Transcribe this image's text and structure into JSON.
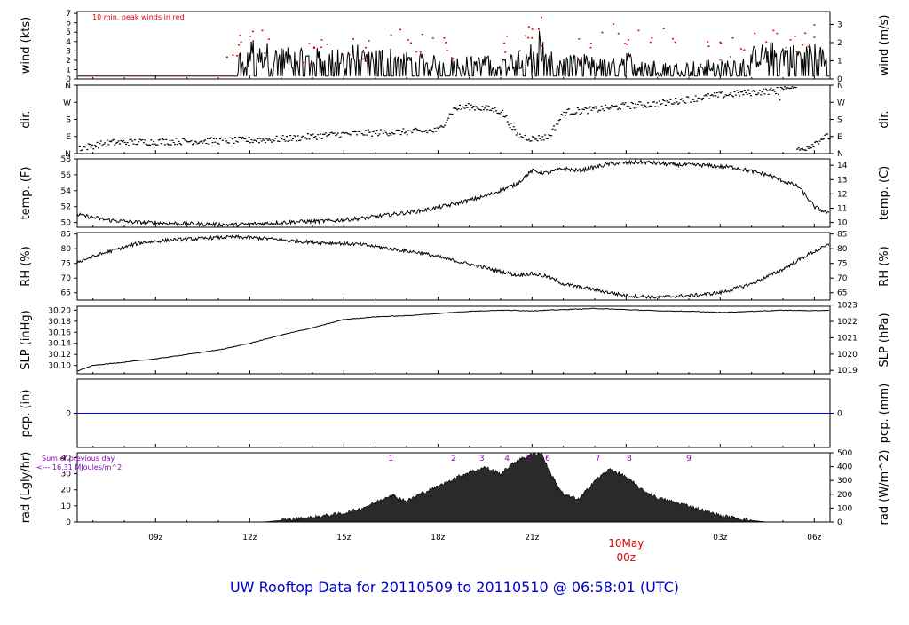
{
  "title": "UW Rooftop Data for 20110509  to  20110510 @ 06:58:01  (UTC)",
  "colors": {
    "title": "#0000cc",
    "peak": "#dd0000",
    "date_label": "#dd0000",
    "pcp_line": "#0000ff",
    "rad_note": "#8800bb",
    "rad_fill": "#2a2a2a",
    "axis": "#000000"
  },
  "time_axis": {
    "tick_labels": [
      "09z",
      "12z",
      "15z",
      "18z",
      "21z",
      "00z",
      "03z",
      "06z"
    ],
    "date_label": "10May",
    "date_sub": "00z"
  },
  "chart_data": [
    {
      "type": "line",
      "panel": "wind",
      "ylabel_left": "wind (kts)",
      "ylabel_right": "wind (m/s)",
      "annotation": "10 min. peak winds in red",
      "yticks_left": [
        "0",
        "1",
        "2",
        "3",
        "4",
        "5",
        "6",
        "7"
      ],
      "yticks_right": [
        "0",
        "1",
        "2",
        "3"
      ],
      "ylim": [
        0,
        7.2
      ],
      "x_hours_range": [
        6.5,
        30.5
      ],
      "series": [
        {
          "values_from": "wind speed at 1-min resolution (kts)",
          "x_hours": [
            6.5,
            11.6,
            11.7,
            11.75,
            12.0,
            12.1,
            12.2,
            12.4,
            12.5,
            12.7,
            13.9,
            14.3,
            14.8,
            15.3,
            15.8,
            16.3,
            16.8,
            17.3,
            18.1,
            20.2,
            20.5,
            21.0,
            21.2,
            21.5,
            22.3,
            22.6,
            23.5,
            24.0,
            24.2,
            24.6,
            25.3,
            25.8,
            26.5,
            26.9,
            27.5,
            28.0,
            28.3,
            28.8,
            29.4,
            29.8,
            30.1,
            30.5
          ],
          "values": [
            0.3,
            0.3,
            4.0,
            2.0,
            3.5,
            4.8,
            4.5,
            3.0,
            4.2,
            3.5,
            3.2,
            3.5,
            3.2,
            3.8,
            3.5,
            3.6,
            3.2,
            2.8,
            2.5,
            2.5,
            3.5,
            4.0,
            6.3,
            3.0,
            2.5,
            2.8,
            2.0,
            3.5,
            2.5,
            2.2,
            1.8,
            1.8,
            2.2,
            1.8,
            2.6,
            3.5,
            3.8,
            4.2,
            3.8,
            4.1,
            4.0,
            2.5
          ]
        },
        {
          "name": "10 min. peak winds",
          "x_hours": [
            11.7,
            12.1,
            12.4,
            13.9,
            14.3,
            15.3,
            15.8,
            16.8,
            17.5,
            18.2,
            20.2,
            20.9,
            21.3,
            22.5,
            23.6,
            24.4,
            25.2,
            26.6,
            27.4,
            28.1,
            28.7,
            29.4,
            30.0
          ],
          "values": [
            4.7,
            5.1,
            5.2,
            3.8,
            4.2,
            4.3,
            4.1,
            5.3,
            4.8,
            4.4,
            4.6,
            5.6,
            6.6,
            4.3,
            5.9,
            5.2,
            5.4,
            4.0,
            4.4,
            4.9,
            5.2,
            4.6,
            5.8
          ]
        }
      ]
    },
    {
      "type": "scatter",
      "panel": "dir",
      "ylabel_left": "dir.",
      "ylabel_right": "dir.",
      "yticks_left": [
        "N",
        "E",
        "S",
        "W",
        "N"
      ],
      "yticks_right": [
        "N",
        "E",
        "S",
        "W",
        "N"
      ],
      "ylim": [
        0,
        360
      ],
      "x_hours": [
        6.5,
        7.5,
        9.0,
        11.0,
        12.5,
        13.5,
        14.5,
        15.5,
        16.5,
        17.5,
        18.0,
        18.5,
        19.0,
        19.5,
        20.0,
        20.5,
        21.0,
        21.5,
        22.0,
        23.0,
        24.0,
        25.0,
        26.0,
        27.0,
        28.0,
        28.8,
        29.3,
        29.8,
        30.3
      ],
      "values": [
        30,
        60,
        65,
        70,
        75,
        85,
        100,
        110,
        115,
        120,
        125,
        240,
        250,
        240,
        225,
        100,
        80,
        90,
        220,
        235,
        255,
        265,
        290,
        310,
        325,
        335,
        10,
        40,
        90
      ]
    },
    {
      "type": "line",
      "panel": "temp",
      "ylabel_left": "temp. (F)",
      "ylabel_right": "temp. (C)",
      "yticks_left": [
        "50",
        "52",
        "54",
        "56",
        "58"
      ],
      "yticks_right": [
        "10",
        "11",
        "12",
        "13",
        "14"
      ],
      "ylim": [
        49.4,
        58.0
      ],
      "x_hours": [
        6.5,
        7.5,
        8.5,
        9.5,
        10.5,
        11.5,
        12.5,
        13.5,
        14.5,
        15.5,
        16.5,
        17.5,
        18.5,
        19.5,
        20.5,
        21.0,
        21.5,
        22.0,
        22.5,
        23.5,
        24.5,
        25.5,
        26.5,
        27.5,
        28.5,
        29.5,
        30.0,
        30.5
      ],
      "values": [
        51.0,
        50.3,
        50.0,
        49.9,
        49.8,
        49.7,
        49.9,
        50.1,
        50.2,
        50.5,
        51.0,
        51.5,
        52.3,
        53.3,
        54.8,
        56.5,
        56.2,
        56.8,
        56.5,
        57.4,
        57.6,
        57.3,
        57.2,
        56.9,
        56.0,
        54.5,
        52.0,
        51.0
      ]
    },
    {
      "type": "line",
      "panel": "rh",
      "ylabel_left": "RH (%)",
      "ylabel_right": "RH (%)",
      "yticks_left": [
        "65",
        "70",
        "75",
        "80",
        "85"
      ],
      "yticks_right": [
        "65",
        "70",
        "75",
        "80",
        "85"
      ],
      "ylim": [
        62.5,
        85.5
      ],
      "x_hours": [
        6.5,
        7.5,
        8.5,
        9.5,
        10.5,
        11.5,
        12.5,
        13.5,
        14.5,
        15.5,
        16.5,
        17.5,
        18.5,
        19.5,
        20.5,
        21.0,
        21.5,
        22.0,
        23.0,
        24.0,
        25.0,
        26.0,
        27.0,
        28.0,
        29.0,
        29.8,
        30.5
      ],
      "values": [
        75.5,
        79.0,
        82.0,
        83.0,
        83.5,
        84.0,
        83.5,
        82.5,
        82.0,
        81.5,
        80.0,
        78.5,
        76.0,
        73.5,
        71.0,
        71.5,
        70.5,
        68.0,
        66.0,
        64.0,
        63.5,
        64.0,
        65.0,
        68.0,
        73.0,
        78.0,
        81.5
      ]
    },
    {
      "type": "line",
      "panel": "slp",
      "ylabel_left": "SLP (inHg)",
      "ylabel_right": "SLP (hPa)",
      "yticks_left": [
        "30.10",
        "30.12",
        "30.14",
        "30.16",
        "30.18",
        "30.20"
      ],
      "yticks_right": [
        "1019",
        "1020",
        "1021",
        "1022",
        "1023"
      ],
      "ylim": [
        30.085,
        30.207
      ],
      "x_hours": [
        6.5,
        7.0,
        8.0,
        9.0,
        10.0,
        11.0,
        12.0,
        13.0,
        14.0,
        15.0,
        16.0,
        17.0,
        18.0,
        19.0,
        20.0,
        21.0,
        22.0,
        23.0,
        24.0,
        25.0,
        26.0,
        27.0,
        28.0,
        29.0,
        30.0,
        30.5
      ],
      "values": [
        30.09,
        30.1,
        30.106,
        30.112,
        30.12,
        30.128,
        30.14,
        30.155,
        30.168,
        30.183,
        30.188,
        30.19,
        30.194,
        30.198,
        30.2,
        30.199,
        30.201,
        30.203,
        30.201,
        30.199,
        30.198,
        30.196,
        30.198,
        30.2,
        30.199,
        30.2
      ]
    },
    {
      "type": "line",
      "panel": "pcp",
      "ylabel_left": "pcp. (in)",
      "ylabel_right": "pcp. (mm)",
      "yticks_left": [
        "0"
      ],
      "yticks_right": [
        "0"
      ],
      "ylim": [
        -0.5,
        0.5
      ],
      "x_hours": [
        6.5,
        30.5
      ],
      "values": [
        0,
        0
      ]
    },
    {
      "type": "area",
      "panel": "rad",
      "ylabel_left": "rad (Lgly/hr)",
      "ylabel_right": "rad (W/m^2)",
      "yticks_left": [
        "0",
        "10",
        "20",
        "30",
        "40"
      ],
      "yticks_right": [
        "0",
        "100",
        "200",
        "300",
        "400",
        "500"
      ],
      "ylim": [
        0,
        43
      ],
      "note": [
        "Sum of previous day",
        "<--- 16.31 MJoules/m^2"
      ],
      "markers": [
        "1",
        "2",
        "3",
        "4",
        "5",
        "6",
        "7",
        "8",
        "9"
      ],
      "marker_x_hours": [
        16.5,
        18.5,
        19.4,
        20.2,
        20.9,
        21.5,
        23.1,
        24.1,
        26.0
      ],
      "x_hours": [
        12.4,
        13.0,
        14.0,
        15.0,
        15.5,
        16.0,
        16.5,
        17.0,
        17.5,
        18.0,
        18.5,
        19.0,
        19.5,
        20.0,
        20.5,
        21.0,
        21.3,
        21.6,
        22.0,
        22.5,
        23.0,
        23.5,
        24.0,
        24.5,
        25.0,
        26.0,
        27.0,
        28.0,
        28.5
      ],
      "values": [
        0,
        1.0,
        3.0,
        5.5,
        8.0,
        12.0,
        17.0,
        13.0,
        18.0,
        22.0,
        27.0,
        31.0,
        34.0,
        30.0,
        38.0,
        42.0,
        43.0,
        30.0,
        17.0,
        14.0,
        26.0,
        33.0,
        28.0,
        20.0,
        15.0,
        10.0,
        4.0,
        1.0,
        0
      ]
    }
  ]
}
